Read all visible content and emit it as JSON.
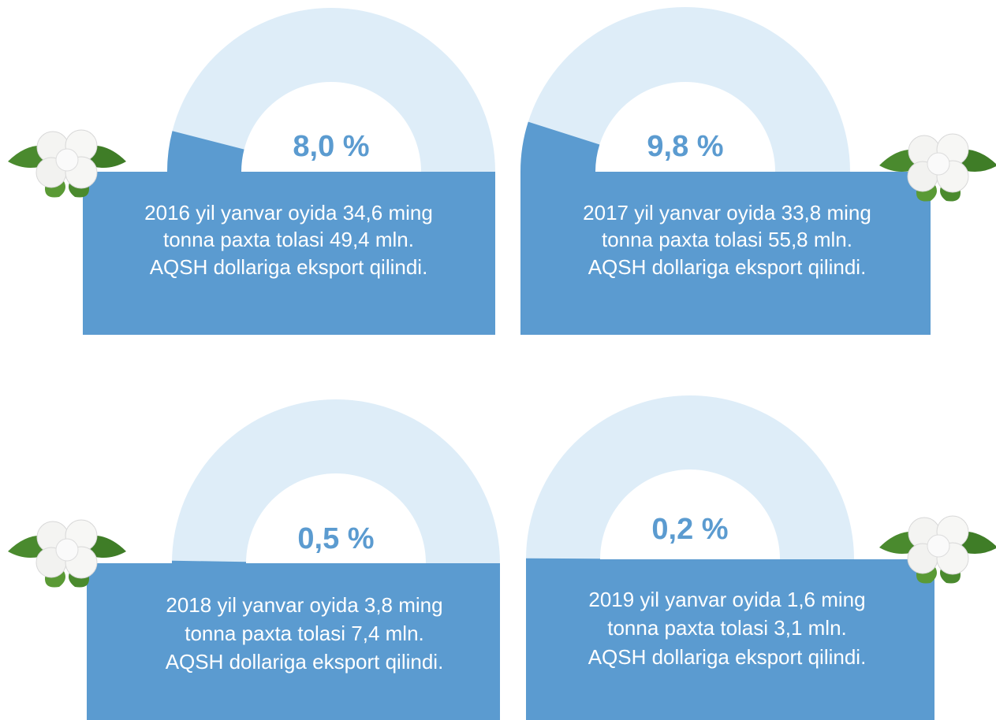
{
  "chart_data": [
    {
      "type": "gauge",
      "ylim": [
        0,
        100
      ],
      "values": [
        8.0
      ],
      "value_labels": [
        "8,0 %"
      ],
      "color": "#5b9bd0",
      "track_color": "#deedf8",
      "text": [
        "2016 yil yanvar oyida 34,6 ming",
        "tonna paxta tolasi 49,4 mln.",
        "AQSH dollariga eksport qilindi."
      ]
    },
    {
      "type": "gauge",
      "ylim": [
        0,
        100
      ],
      "values": [
        9.8
      ],
      "value_labels": [
        "9,8 %"
      ],
      "color": "#5b9bd0",
      "track_color": "#deedf8",
      "text": [
        "2017 yil yanvar oyida 33,8 ming",
        "tonna paxta tolasi 55,8 mln.",
        "AQSH dollariga eksport qilindi."
      ]
    },
    {
      "type": "gauge",
      "ylim": [
        0,
        100
      ],
      "values": [
        0.5
      ],
      "value_labels": [
        "0,5 %"
      ],
      "color": "#5b9bd0",
      "track_color": "#deedf8",
      "text": [
        "2018 yil yanvar oyida 3,8 ming",
        "tonna paxta tolasi 7,4 mln.",
        "AQSH dollariga eksport qilindi."
      ]
    },
    {
      "type": "gauge",
      "ylim": [
        0,
        100
      ],
      "values": [
        0.2
      ],
      "value_labels": [
        "0,2 %"
      ],
      "color": "#5b9bd0",
      "track_color": "#deedf8",
      "text": [
        "2019 yil yanvar oyida 1,6 ming",
        "tonna paxta tolasi 3,1 mln.",
        "AQSH dollariga eksport qilindi."
      ]
    }
  ]
}
